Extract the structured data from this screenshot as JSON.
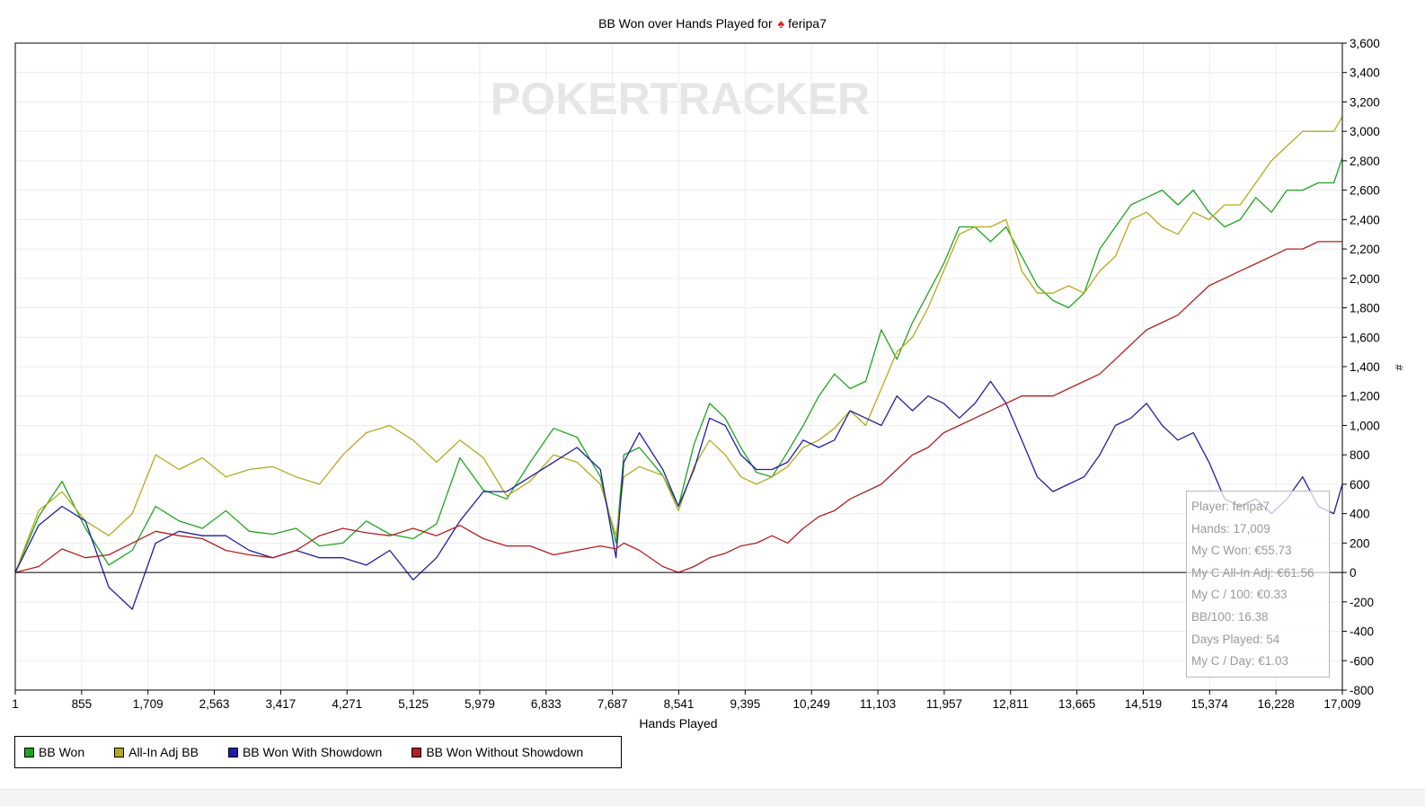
{
  "chart_data": {
    "type": "line",
    "title_prefix": "BB Won over Hands Played for",
    "player": "feripa7",
    "xlabel": "Hands Played",
    "ylabel": "#",
    "watermark": "POKERTRACKER",
    "x_ticks": [
      "1",
      "855",
      "1,709",
      "2,563",
      "3,417",
      "4,271",
      "5,125",
      "5,979",
      "6,833",
      "7,687",
      "8,541",
      "9,395",
      "10,249",
      "11,103",
      "11,957",
      "12,811",
      "13,665",
      "14,519",
      "15,374",
      "16,228",
      "17,009"
    ],
    "xlim": [
      1,
      17009
    ],
    "ylim": [
      -800,
      3600
    ],
    "y_ticks": [
      -800,
      -600,
      -400,
      -200,
      0,
      200,
      400,
      600,
      800,
      1000,
      1200,
      1400,
      1600,
      1800,
      2000,
      2200,
      2400,
      2600,
      2800,
      3000,
      3200,
      3400,
      3600
    ],
    "grid": true,
    "legend_position": "bottom-left",
    "series": [
      {
        "name": "BB Won",
        "color": "#1ea51e",
        "x": [
          1,
          300,
          600,
          900,
          1200,
          1500,
          1800,
          2100,
          2400,
          2700,
          3000,
          3300,
          3600,
          3900,
          4200,
          4500,
          4800,
          5100,
          5400,
          5700,
          6000,
          6300,
          6600,
          6900,
          7200,
          7500,
          7700,
          7800,
          8000,
          8300,
          8500,
          8700,
          8900,
          9100,
          9300,
          9500,
          9700,
          9900,
          10100,
          10300,
          10500,
          10700,
          10900,
          11100,
          11300,
          11500,
          11700,
          11900,
          12100,
          12300,
          12500,
          12700,
          12900,
          13100,
          13300,
          13500,
          13700,
          13900,
          14100,
          14300,
          14500,
          14700,
          14900,
          15100,
          15300,
          15500,
          15700,
          15900,
          16100,
          16300,
          16500,
          16700,
          16900,
          17009
        ],
        "y": [
          0,
          380,
          620,
          300,
          50,
          150,
          450,
          350,
          300,
          420,
          280,
          260,
          300,
          180,
          200,
          350,
          260,
          230,
          330,
          780,
          560,
          500,
          750,
          980,
          920,
          650,
          200,
          800,
          850,
          660,
          450,
          870,
          1150,
          1050,
          850,
          680,
          650,
          820,
          1000,
          1200,
          1350,
          1250,
          1300,
          1650,
          1450,
          1700,
          1900,
          2100,
          2350,
          2350,
          2250,
          2350,
          2150,
          1950,
          1850,
          1800,
          1900,
          2200,
          2350,
          2500,
          2550,
          2600,
          2500,
          2600,
          2450,
          2350,
          2400,
          2550,
          2450,
          2600,
          2600,
          2650,
          2650,
          2820
        ]
      },
      {
        "name": "All-In Adj BB",
        "color": "#b4aa1e",
        "x": [
          1,
          300,
          600,
          900,
          1200,
          1500,
          1800,
          2100,
          2400,
          2700,
          3000,
          3300,
          3600,
          3900,
          4200,
          4500,
          4800,
          5100,
          5400,
          5700,
          6000,
          6300,
          6600,
          6900,
          7200,
          7500,
          7700,
          7800,
          8000,
          8300,
          8500,
          8700,
          8900,
          9100,
          9300,
          9500,
          9700,
          9900,
          10100,
          10300,
          10500,
          10700,
          10900,
          11100,
          11300,
          11500,
          11700,
          11900,
          12100,
          12300,
          12500,
          12700,
          12900,
          13100,
          13300,
          13500,
          13700,
          13900,
          14100,
          14300,
          14500,
          14700,
          14900,
          15100,
          15300,
          15500,
          15700,
          15900,
          16100,
          16300,
          16500,
          16700,
          16900,
          17009
        ],
        "y": [
          0,
          420,
          550,
          350,
          250,
          400,
          800,
          700,
          780,
          650,
          700,
          720,
          650,
          600,
          800,
          950,
          1000,
          900,
          750,
          900,
          780,
          520,
          620,
          800,
          750,
          600,
          250,
          650,
          720,
          660,
          420,
          720,
          900,
          800,
          650,
          600,
          650,
          720,
          850,
          900,
          980,
          1100,
          1000,
          1250,
          1500,
          1600,
          1800,
          2050,
          2300,
          2350,
          2350,
          2400,
          2050,
          1900,
          1900,
          1950,
          1900,
          2050,
          2150,
          2400,
          2450,
          2350,
          2300,
          2450,
          2400,
          2500,
          2500,
          2650,
          2800,
          2900,
          3000,
          3000,
          3000,
          3100
        ]
      },
      {
        "name": "BB Won With Showdown",
        "color": "#1e1ea5",
        "x": [
          1,
          300,
          600,
          900,
          1200,
          1500,
          1800,
          2100,
          2400,
          2700,
          3000,
          3300,
          3600,
          3900,
          4200,
          4500,
          4800,
          5100,
          5400,
          5700,
          6000,
          6300,
          6600,
          6900,
          7200,
          7500,
          7700,
          7800,
          8000,
          8300,
          8500,
          8700,
          8900,
          9100,
          9300,
          9500,
          9700,
          9900,
          10100,
          10300,
          10500,
          10700,
          10900,
          11100,
          11300,
          11500,
          11700,
          11900,
          12100,
          12300,
          12500,
          12700,
          12900,
          13100,
          13300,
          13500,
          13700,
          13900,
          14100,
          14300,
          14500,
          14700,
          14900,
          15100,
          15300,
          15500,
          15700,
          15900,
          16100,
          16300,
          16500,
          16700,
          16900,
          17009
        ],
        "y": [
          0,
          320,
          450,
          350,
          -100,
          -250,
          200,
          280,
          250,
          250,
          150,
          100,
          150,
          100,
          100,
          50,
          150,
          -50,
          100,
          350,
          550,
          550,
          650,
          750,
          850,
          700,
          100,
          750,
          950,
          700,
          450,
          700,
          1050,
          1000,
          800,
          700,
          700,
          750,
          900,
          850,
          900,
          1100,
          1050,
          1000,
          1200,
          1100,
          1200,
          1150,
          1050,
          1150,
          1300,
          1150,
          900,
          650,
          550,
          600,
          650,
          800,
          1000,
          1050,
          1150,
          1000,
          900,
          950,
          750,
          500,
          450,
          500,
          400,
          500,
          650,
          450,
          400,
          600
        ]
      },
      {
        "name": "BB Won Without Showdown",
        "color": "#b41e1e",
        "x": [
          1,
          300,
          600,
          900,
          1200,
          1500,
          1800,
          2100,
          2400,
          2700,
          3000,
          3300,
          3600,
          3900,
          4200,
          4500,
          4800,
          5100,
          5400,
          5700,
          6000,
          6300,
          6600,
          6900,
          7200,
          7500,
          7700,
          7800,
          8000,
          8300,
          8500,
          8700,
          8900,
          9100,
          9300,
          9500,
          9700,
          9900,
          10100,
          10300,
          10500,
          10700,
          10900,
          11100,
          11300,
          11500,
          11700,
          11900,
          12100,
          12300,
          12500,
          12700,
          12900,
          13100,
          13300,
          13500,
          13700,
          13900,
          14100,
          14300,
          14500,
          14700,
          14900,
          15100,
          15300,
          15500,
          15700,
          15900,
          16100,
          16300,
          16500,
          16700,
          16900,
          17009
        ],
        "y": [
          0,
          40,
          160,
          100,
          120,
          200,
          280,
          250,
          230,
          150,
          120,
          100,
          150,
          250,
          300,
          270,
          250,
          300,
          250,
          320,
          230,
          180,
          180,
          120,
          150,
          180,
          160,
          200,
          150,
          40,
          0,
          40,
          100,
          130,
          180,
          200,
          250,
          200,
          300,
          380,
          420,
          500,
          550,
          600,
          700,
          800,
          850,
          950,
          1000,
          1050,
          1100,
          1150,
          1200,
          1200,
          1200,
          1250,
          1300,
          1350,
          1450,
          1550,
          1650,
          1700,
          1750,
          1850,
          1950,
          2000,
          2050,
          2100,
          2150,
          2200,
          2200,
          2250,
          2250,
          2250
        ]
      }
    ]
  },
  "tooltip": {
    "player": "Player: feripa7",
    "hands": "Hands: 17,009",
    "won": "My C Won: €55.73",
    "allin": "My C All-In Adj: €61.56",
    "per100": "My C / 100: €0.33",
    "bb100": "BB/100: 16.38",
    "days": "Days Played: 54",
    "perday": "My C / Day: €1.03"
  }
}
